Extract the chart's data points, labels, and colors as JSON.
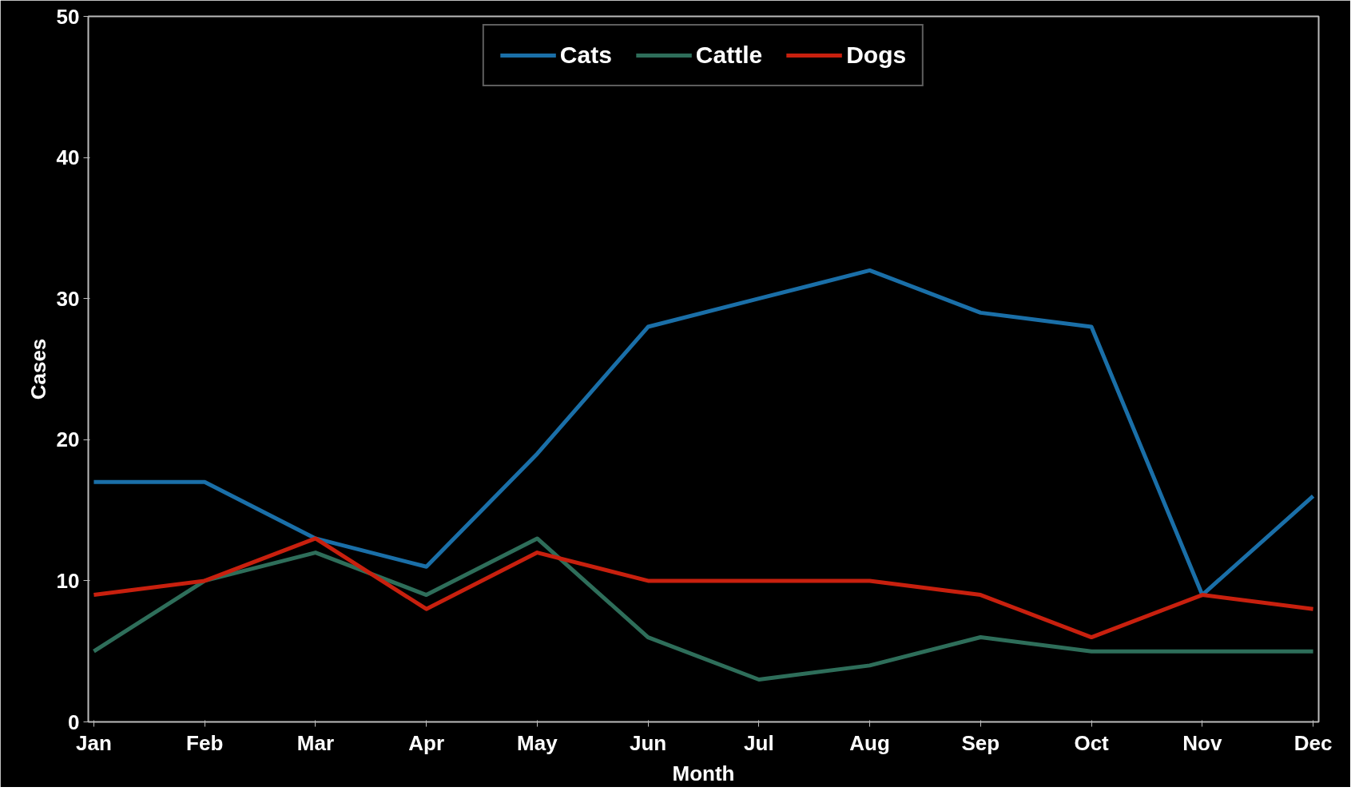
{
  "chart_data": {
    "type": "line",
    "xlabel": "Month",
    "ylabel": "Cases",
    "categories": [
      "Jan",
      "Feb",
      "Mar",
      "Apr",
      "May",
      "Jun",
      "Jul",
      "Aug",
      "Sep",
      "Oct",
      "Nov",
      "Dec"
    ],
    "series": [
      {
        "name": "Cats",
        "color": "#1a6fa8",
        "values": [
          17,
          17,
          13,
          11,
          19,
          28,
          30,
          32,
          29,
          28,
          9,
          16
        ]
      },
      {
        "name": "Cattle",
        "color": "#2e6e5a",
        "values": [
          5,
          10,
          12,
          9,
          13,
          6,
          3,
          4,
          6,
          5,
          5,
          5
        ]
      },
      {
        "name": "Dogs",
        "color": "#c8200e",
        "values": [
          9,
          10,
          13,
          8,
          12,
          10,
          10,
          10,
          9,
          6,
          9,
          8
        ]
      }
    ],
    "ylim": [
      0,
      50
    ],
    "yticks": [
      0,
      10,
      20,
      30,
      40,
      50
    ],
    "grid": false,
    "legend": "top",
    "line_style": "solid",
    "marker": "none"
  }
}
